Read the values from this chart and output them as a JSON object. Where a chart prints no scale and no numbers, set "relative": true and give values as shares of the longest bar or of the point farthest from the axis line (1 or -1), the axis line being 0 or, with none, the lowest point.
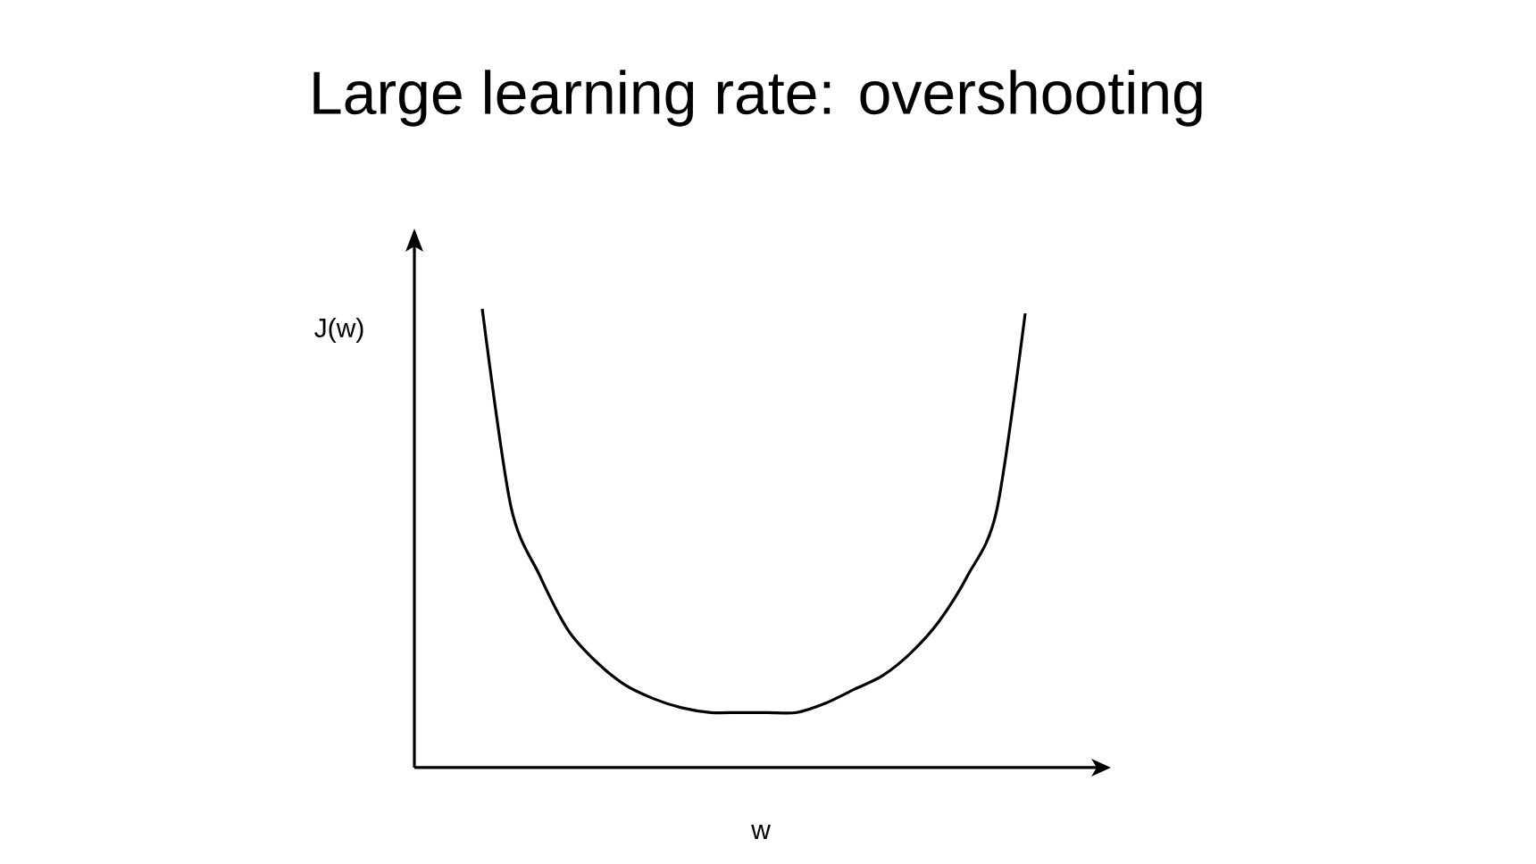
{
  "chart_data": {
    "type": "line",
    "title": "Large learning rate: overshooting",
    "xlabel": "w",
    "ylabel": "J(w)",
    "relative": true,
    "color": "#000000",
    "categories": [
      null,
      null,
      null,
      null,
      null,
      null,
      null,
      null,
      null,
      null,
      null,
      null,
      null,
      null,
      null,
      null,
      null,
      null,
      null,
      null
    ],
    "values": [
      1.0,
      0.57,
      0.42,
      0.3,
      0.23,
      0.18,
      0.15,
      0.13,
      0.12,
      0.12,
      0.12,
      0.12,
      0.14,
      0.17,
      0.2,
      0.25,
      0.32,
      0.42,
      0.56,
      0.99
    ]
  }
}
